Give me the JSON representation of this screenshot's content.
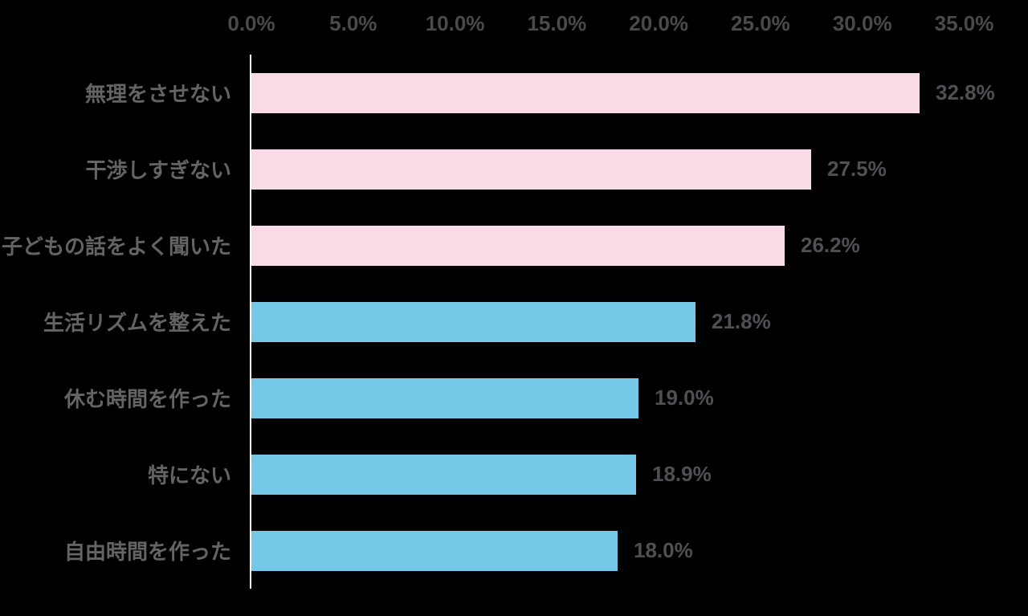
{
  "chart_data": {
    "type": "bar",
    "orientation": "horizontal",
    "title": "",
    "xlabel": "",
    "ylabel": "",
    "categories": [
      "無理をさせない",
      "干渉しすぎない",
      "子どもの話をよく聞いた",
      "生活リズムを整えた",
      "休む時間を作った",
      "特にない",
      "自由時間を作った"
    ],
    "values": [
      32.8,
      27.5,
      26.2,
      21.8,
      19.0,
      18.9,
      18.0
    ],
    "value_labels": [
      "32.8%",
      "27.5%",
      "26.2%",
      "21.8%",
      "19.0%",
      "18.9%",
      "18.0%"
    ],
    "bar_colors": [
      "#F9DAE7",
      "#F9DAE7",
      "#F9DAE7",
      "#76C8E8",
      "#76C8E8",
      "#76C8E8",
      "#76C8E8"
    ],
    "x_ticks": [
      "0.0%",
      "5.0%",
      "10.0%",
      "15.0%",
      "20.0%",
      "25.0%",
      "30.0%",
      "35.0%"
    ],
    "xlim": [
      0,
      35
    ],
    "grid": false,
    "legend": false,
    "background_color": "#000000",
    "axis_line_color": "#FFFFFF",
    "tick_text_color": "#4A4A4A",
    "category_text_color": "#646464",
    "value_text_color": "#505054"
  }
}
